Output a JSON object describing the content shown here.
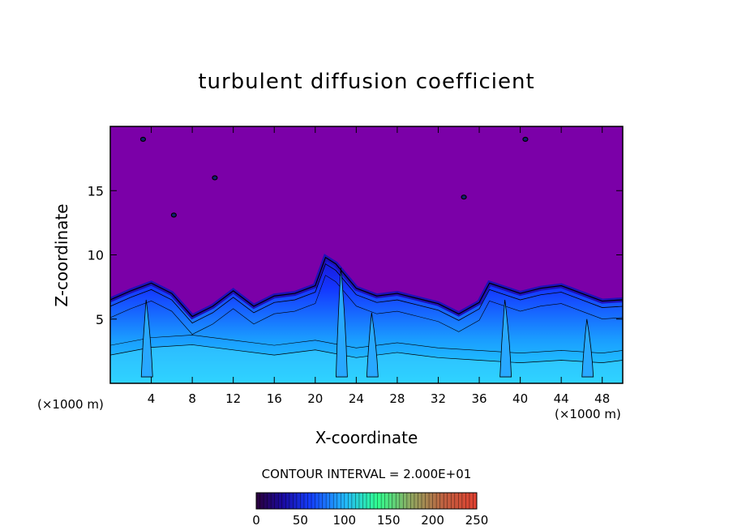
{
  "chart_data": {
    "type": "heatmap",
    "title": "turbulent diffusion coefficient",
    "xlabel": "X-coordinate",
    "ylabel": "Z-coordinate",
    "x_unit": "(×1000 m)",
    "x_ticks": [
      4,
      8,
      12,
      16,
      20,
      24,
      28,
      32,
      36,
      40,
      44,
      48
    ],
    "y_ticks": [
      5,
      10,
      15
    ],
    "xlim": [
      0,
      50
    ],
    "ylim": [
      0,
      20
    ],
    "contour_interval_text": "CONTOUR INTERVAL = 2.000E+01",
    "colorbar": {
      "min": 0,
      "max": 250,
      "ticks": [
        0,
        50,
        100,
        150,
        200,
        250
      ]
    },
    "background_color": "#7b00a8",
    "turbulent_layer_top": [
      [
        0,
        6.5
      ],
      [
        2,
        7.2
      ],
      [
        4,
        7.8
      ],
      [
        6,
        7.0
      ],
      [
        8,
        5.2
      ],
      [
        10,
        6.0
      ],
      [
        12,
        7.2
      ],
      [
        14,
        6.0
      ],
      [
        16,
        6.8
      ],
      [
        18,
        7.0
      ],
      [
        20,
        7.6
      ],
      [
        21,
        9.8
      ],
      [
        22,
        9.3
      ],
      [
        24,
        7.4
      ],
      [
        26,
        6.8
      ],
      [
        28,
        7.0
      ],
      [
        30,
        6.6
      ],
      [
        32,
        6.2
      ],
      [
        34,
        5.4
      ],
      [
        36,
        6.3
      ],
      [
        37,
        7.8
      ],
      [
        40,
        7.0
      ],
      [
        42,
        7.4
      ],
      [
        44,
        7.6
      ],
      [
        46,
        7.0
      ],
      [
        48,
        6.4
      ],
      [
        50,
        6.5
      ]
    ],
    "dense_layer_top": [
      [
        0,
        2.2
      ],
      [
        4,
        2.8
      ],
      [
        8,
        3.0
      ],
      [
        12,
        2.6
      ],
      [
        16,
        2.2
      ],
      [
        20,
        2.6
      ],
      [
        24,
        2.0
      ],
      [
        28,
        2.4
      ],
      [
        32,
        2.0
      ],
      [
        36,
        1.8
      ],
      [
        40,
        1.6
      ],
      [
        44,
        1.8
      ],
      [
        48,
        1.6
      ],
      [
        50,
        1.8
      ]
    ],
    "plumes": [
      [
        22.5,
        9.0
      ],
      [
        25.5,
        5.5
      ],
      [
        38.5,
        6.5
      ],
      [
        46.5,
        5.0
      ],
      [
        3.5,
        6.5
      ]
    ],
    "isolated_cells": [
      [
        3.2,
        19.0
      ],
      [
        10.2,
        16.0
      ],
      [
        6.2,
        13.1
      ],
      [
        34.5,
        14.5
      ],
      [
        40.5,
        19.0
      ]
    ]
  }
}
